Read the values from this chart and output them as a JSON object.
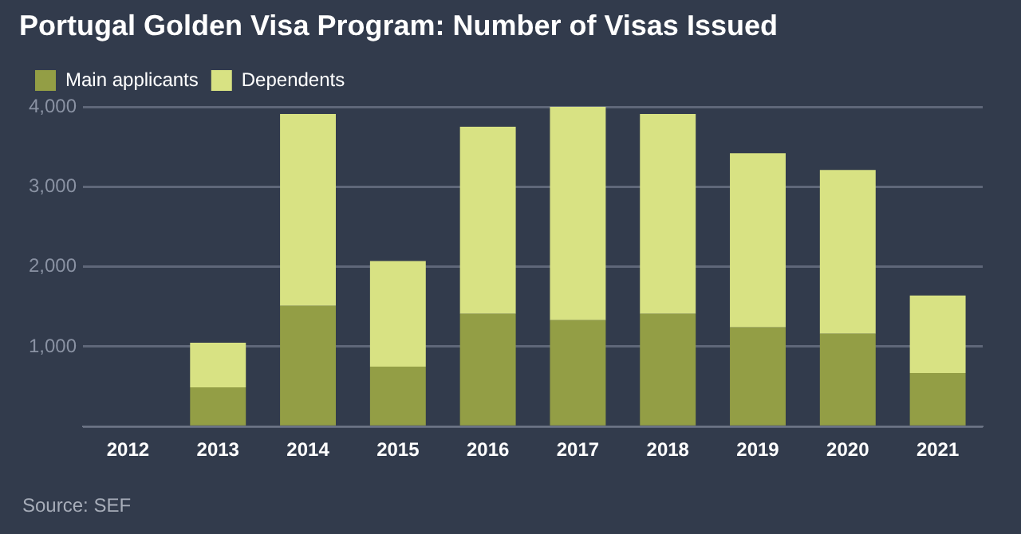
{
  "chart_data": {
    "type": "bar",
    "title": "Portugal Golden Visa Program: Number of Visas Issued",
    "categories": [
      "2012",
      "2013",
      "2014",
      "2015",
      "2016",
      "2017",
      "2018",
      "2019",
      "2020",
      "2021"
    ],
    "stacked": true,
    "series": [
      {
        "name": "Main applicants",
        "color": "#939e45",
        "values": [
          0,
          490,
          1510,
          750,
          1410,
          1330,
          1410,
          1240,
          1160,
          670
        ]
      },
      {
        "name": "Dependents",
        "color": "#d8e283",
        "values": [
          0,
          560,
          2400,
          1320,
          2340,
          2670,
          2500,
          2180,
          2050,
          970
        ]
      }
    ],
    "ylim": [
      0,
      4000
    ],
    "yticks": [
      {
        "value": 0,
        "label": null
      },
      {
        "value": 1000,
        "label": "1,000"
      },
      {
        "value": 2000,
        "label": "2,000"
      },
      {
        "value": 3000,
        "label": "3,000"
      },
      {
        "value": 4000,
        "label": "4,000"
      }
    ],
    "grid": "y",
    "legend": "top left",
    "annotations": [
      "Source: SEF"
    ]
  }
}
